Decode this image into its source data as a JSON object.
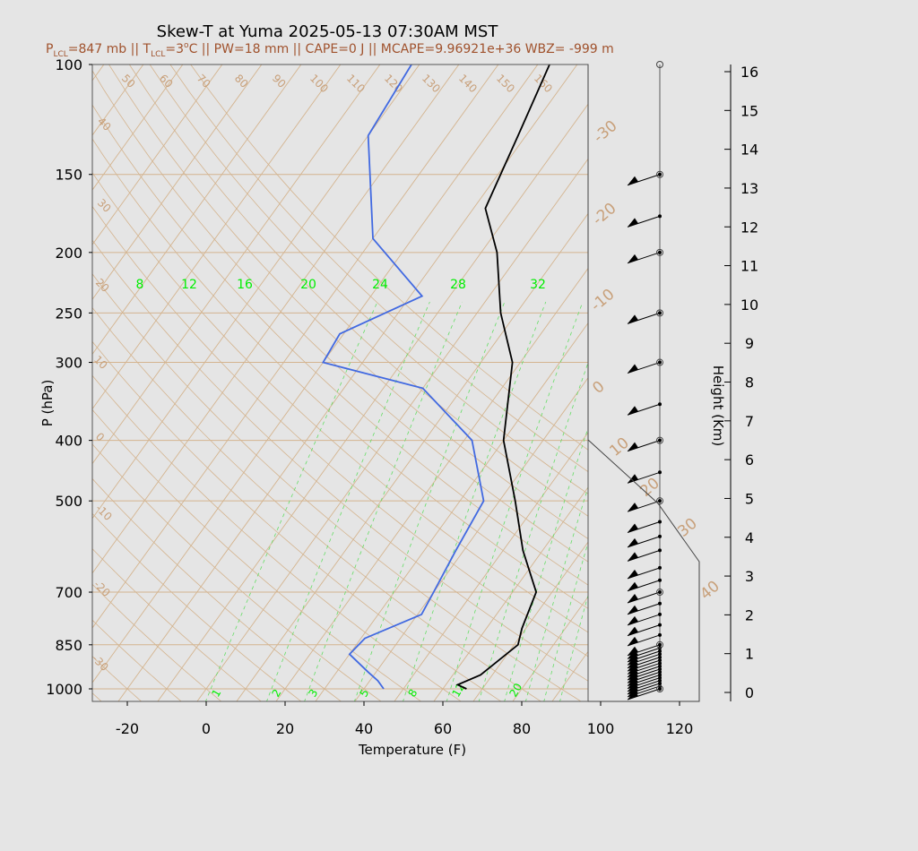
{
  "header": {
    "title": "Skew-T at Yuma 2025-05-13 07:30AM MST",
    "stats": [
      {
        "main": "P",
        "sub": "LCL",
        "sup": "",
        "rest": "=847 mb || "
      },
      {
        "main": "T",
        "sub": "LCL",
        "sup": "",
        "rest": "=3"
      },
      {
        "main": "",
        "sub": "",
        "sup": "o",
        "rest": "C || PW=18 mm || CAPE=0 J || MCAPE=9.96921e+36 WBZ= -999 m"
      }
    ]
  },
  "axes": {
    "xlabel": "Temperature (F)",
    "ylabel": "P (hPa)",
    "height_label": "Height (Km)"
  },
  "colors": {
    "background": "#e5e5e5",
    "grid_tan": "#d4b48f",
    "mixing_green": "#66dd66",
    "temp_line": "#000000",
    "dew_line": "#4169e1"
  },
  "chart_data": {
    "type": "line",
    "title": "Skew-T at Yuma 2025-05-13 07:30AM MST",
    "xlabel": "Temperature (F)",
    "ylabel": "P (hPa)",
    "pressure_ticks": [
      100,
      150,
      200,
      250,
      300,
      400,
      500,
      700,
      850,
      1000
    ],
    "temperature_ticks": [
      -20,
      0,
      20,
      40,
      60,
      80,
      100,
      120
    ],
    "height_ticks": [
      0,
      1,
      2,
      3,
      4,
      5,
      6,
      7,
      8,
      9,
      10,
      11,
      12,
      13,
      14,
      15,
      16
    ],
    "isotherm_labels": [
      "-30",
      "-20",
      "-10",
      "0",
      "10",
      "20",
      "30",
      "40"
    ],
    "adiabat_top_labels": [
      "50",
      "60",
      "70",
      "80",
      "90",
      "100",
      "110",
      "120",
      "130",
      "140",
      "150",
      "160"
    ],
    "adiabat_left_labels": [
      "40",
      "30",
      "20",
      "10",
      "0",
      "-10",
      "-20",
      "-30"
    ],
    "mixing_ratio_top_labels": [
      "8",
      "12",
      "16",
      "20",
      "24",
      "28",
      "32"
    ],
    "mixing_ratio_bottom_labels": [
      "1",
      "2",
      "3",
      "5",
      "8",
      "12",
      "20"
    ],
    "series": [
      {
        "color": "#000000",
        "points": [
          {
            "t": 66,
            "p": 1000
          },
          {
            "t": 63,
            "p": 985
          },
          {
            "t": 67,
            "p": 950
          },
          {
            "t": 71,
            "p": 850
          },
          {
            "t": 69,
            "p": 800
          },
          {
            "t": 66,
            "p": 700
          },
          {
            "t": 55,
            "p": 600
          },
          {
            "t": 44,
            "p": 500
          },
          {
            "t": 30,
            "p": 400
          },
          {
            "t": 18,
            "p": 300
          },
          {
            "t": 6,
            "p": 250
          },
          {
            "t": -6,
            "p": 200
          },
          {
            "t": -17,
            "p": 170
          },
          {
            "t": -22,
            "p": 130
          },
          {
            "t": -27,
            "p": 100
          }
        ]
      },
      {
        "color": "#4169e1",
        "points": [
          {
            "t": 45,
            "p": 1000
          },
          {
            "t": 42,
            "p": 970
          },
          {
            "t": 38,
            "p": 940
          },
          {
            "t": 30,
            "p": 880
          },
          {
            "t": 31,
            "p": 830
          },
          {
            "t": 41,
            "p": 760
          },
          {
            "t": 40,
            "p": 700
          },
          {
            "t": 38,
            "p": 600
          },
          {
            "t": 36,
            "p": 500
          },
          {
            "t": 22,
            "p": 400
          },
          {
            "t": 0,
            "p": 330
          },
          {
            "t": -30,
            "p": 300
          },
          {
            "t": -31,
            "p": 270
          },
          {
            "t": -17,
            "p": 235
          },
          {
            "t": -40,
            "p": 190
          },
          {
            "t": -60,
            "p": 130
          },
          {
            "t": -62,
            "p": 100
          }
        ]
      }
    ],
    "wind_barb_levels": [
      1000,
      990,
      980,
      970,
      960,
      950,
      940,
      930,
      920,
      910,
      900,
      890,
      880,
      870,
      860,
      850,
      820,
      790,
      760,
      730,
      700,
      670,
      640,
      600,
      570,
      540,
      500,
      450,
      400,
      350,
      300,
      250,
      200,
      175,
      150
    ]
  }
}
